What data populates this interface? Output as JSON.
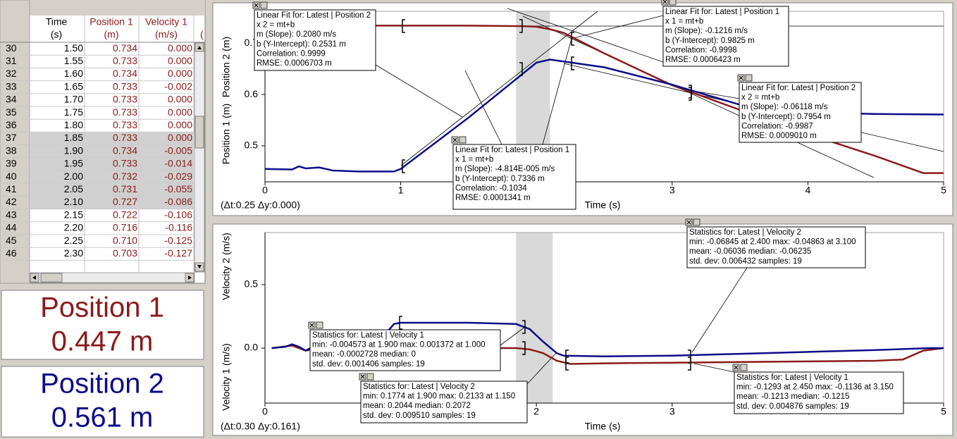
{
  "table": {
    "columns": [
      {
        "name": "Time",
        "unit": "(s)"
      },
      {
        "name": "Position 1",
        "unit": "(m)"
      },
      {
        "name": "Velocity 1",
        "unit": "(m/s)"
      }
    ],
    "partial_header": "(",
    "rows": [
      [
        "30",
        "1.50",
        "0.734",
        "0.000"
      ],
      [
        "31",
        "1.55",
        "0.733",
        "0.000"
      ],
      [
        "32",
        "1.60",
        "0.734",
        "0.000"
      ],
      [
        "33",
        "1.65",
        "0.733",
        "-0.002"
      ],
      [
        "34",
        "1.70",
        "0.733",
        "0.000"
      ],
      [
        "35",
        "1.75",
        "0.733",
        "0.000"
      ],
      [
        "36",
        "1.80",
        "0.733",
        "0.000"
      ],
      [
        "37",
        "1.85",
        "0.733",
        "0.000"
      ],
      [
        "38",
        "1.90",
        "0.734",
        "-0.005"
      ],
      [
        "39",
        "1.95",
        "0.733",
        "-0.014"
      ],
      [
        "40",
        "2.00",
        "0.732",
        "-0.029"
      ],
      [
        "41",
        "2.05",
        "0.731",
        "-0.055"
      ],
      [
        "42",
        "2.10",
        "0.727",
        "-0.086"
      ],
      [
        "43",
        "2.15",
        "0.722",
        "-0.106"
      ],
      [
        "44",
        "2.20",
        "0.716",
        "-0.116"
      ],
      [
        "45",
        "2.25",
        "0.710",
        "-0.125"
      ],
      [
        "46",
        "2.30",
        "0.703",
        "-0.127"
      ]
    ]
  },
  "meters": [
    {
      "label": "Position 1",
      "reading": "0.447 m",
      "color": "#8b1a1a"
    },
    {
      "label": "Position 2",
      "reading": "0.561 m",
      "color": "#0c0c8a"
    }
  ],
  "graphs": [
    {
      "type": "line",
      "x_label": "Time (s)",
      "y_labels": [
        "Position 2 (m)",
        "Position 1 (m)"
      ],
      "readout": "(Δt:0.25 Δy:0.000)",
      "xlim": [
        0,
        5
      ],
      "ylim": [
        0.43,
        0.762
      ],
      "xticks": [
        0,
        1,
        2,
        3,
        4,
        5
      ],
      "yticks": [
        0.5,
        0.6,
        0.7
      ],
      "selection": [
        1.85,
        2.1
      ],
      "series": [
        {
          "color": "#8b1a1a",
          "x": [
            0,
            0.5,
            1,
            1.5,
            1.9,
            2.0,
            2.1,
            2.2,
            2.5,
            3.0,
            3.5,
            4.0,
            4.5,
            4.85,
            5.0
          ],
          "values": [
            0.734,
            0.734,
            0.734,
            0.734,
            0.733,
            0.732,
            0.727,
            0.72,
            0.68,
            0.618,
            0.57,
            0.523,
            0.48,
            0.447,
            0.447
          ]
        },
        {
          "color": "#0c0c8a",
          "x": [
            0,
            0.2,
            0.25,
            0.3,
            0.4,
            0.45,
            0.5,
            0.7,
            0.95,
            1.0,
            1.5,
            2.0,
            2.1,
            2.5,
            3.0,
            3.5,
            4.0,
            4.5,
            5.0
          ],
          "values": [
            0.455,
            0.454,
            0.46,
            0.456,
            0.458,
            0.455,
            0.452,
            0.45,
            0.45,
            0.455,
            0.555,
            0.662,
            0.668,
            0.653,
            0.619,
            0.58,
            0.565,
            0.562,
            0.561
          ]
        }
      ],
      "annotations": [
        [
          "Linear Fit for: Latest | Position 2",
          "x 2 = mt+b",
          "m (Slope): 0.2080 m/s",
          "b (Y-Intercept): 0.2531 m",
          "Correlation: 0.9999",
          "RMSE: 0.0006703 m"
        ],
        [
          "Linear Fit for: Latest | Position 1",
          "x 1 = mt+b",
          "m (Slope): -0.1216 m/s",
          "b (Y-Intercept): 0.9825 m",
          "Correlation: -0.9998",
          "RMSE: 0.0006423 m"
        ],
        [
          "Linear Fit for: Latest | Position 2",
          "x 2 = mt+b",
          "m (Slope): -0.06118 m/s",
          "b (Y-Intercept): 0.7954 m",
          "Correlation: -0.9987",
          "RMSE: 0.0009010 m"
        ],
        [
          "Linear Fit for: Latest | Position 1",
          "x 1 = mt+b",
          "m (Slope): -4.814E-005 m/s",
          "b (Y-Intercept): 0.7336 m",
          "Correlation: -0.1034",
          "RMSE: 0.0001341 m"
        ]
      ]
    },
    {
      "type": "line",
      "x_label": "Time (s)",
      "y_labels": [
        "Velocity 2 (m/s)",
        "Velocity 1 (m/s)"
      ],
      "readout": "(Δt:0.30 Δy:0.161)",
      "xlim": [
        0,
        5
      ],
      "ylim": [
        -0.433,
        0.911
      ],
      "xticks": [
        0,
        1,
        2,
        3,
        4,
        5
      ],
      "yticks": [
        {
          "value": 0,
          "label": "0.0"
        },
        0.5
      ],
      "selection": [
        1.85,
        2.12
      ],
      "series": [
        {
          "color": "#8b1a1a",
          "x": [
            0.05,
            0.2,
            0.3,
            0.4,
            0.5,
            1.0,
            1.5,
            1.85,
            1.95,
            2.05,
            2.15,
            2.25,
            2.5,
            3.0,
            3.5,
            4.0,
            4.5,
            4.7,
            4.85,
            5.0
          ],
          "values": [
            0,
            0.02,
            -0.02,
            0,
            0,
            0,
            0,
            0,
            -0.01,
            -0.04,
            -0.1,
            -0.125,
            -0.12,
            -0.115,
            -0.11,
            -0.105,
            -0.1,
            -0.09,
            -0.02,
            0
          ]
        },
        {
          "color": "#0c0c8a",
          "x": [
            0.05,
            0.15,
            0.2,
            0.25,
            0.3,
            0.35,
            0.4,
            0.5,
            0.8,
            0.95,
            1.0,
            1.5,
            1.85,
            1.95,
            2.05,
            2.15,
            2.2,
            2.5,
            3.0,
            3.5,
            4.0,
            4.5,
            4.9,
            5.0
          ],
          "values": [
            0,
            0.01,
            0.03,
            0.01,
            -0.02,
            0.01,
            -0.01,
            0,
            0,
            0.19,
            0.2,
            0.2,
            0.19,
            0.15,
            0.05,
            -0.04,
            -0.06,
            -0.065,
            -0.06,
            -0.045,
            -0.03,
            -0.015,
            0,
            0
          ]
        }
      ],
      "annotations": [
        [
          "Statistics for: Latest | Velocity 1",
          "min: -0.004573 at 1.900 max: 0.001372 at 1.000",
          "mean: -0.0002728 median: 0",
          "std. dev: 0.001406 samples: 19"
        ],
        [
          "Statistics for: Latest | Velocity 2",
          "min: 0.1774 at 1.900 max: 0.2133 at 1.150",
          "mean: 0.2044 median: 0.2072",
          "std. dev: 0.009510 samples: 19"
        ],
        [
          "Statistics for: Latest | Velocity 2",
          "min: -0.06845 at 2.400 max: -0.04863 at 3.100",
          "mean: -0.06036 median: -0.06235",
          "std. dev: 0.006432 samples: 19"
        ],
        [
          "Statistics for: Latest | Velocity 1",
          "min: -0.1293 at 2.450 max: -0.1136 at 3.150",
          "mean: -0.1213 median: -0.1215",
          "std. dev: 0.004876 samples: 19"
        ]
      ]
    }
  ]
}
